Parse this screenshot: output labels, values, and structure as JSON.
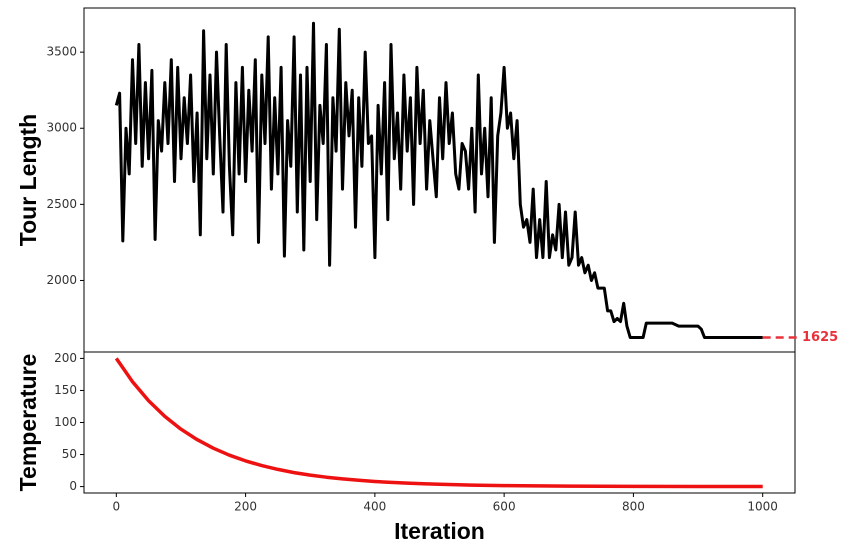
{
  "chart_data": [
    {
      "type": "line",
      "ylabel": "Tour Length",
      "color": "#000000",
      "line_width": 3,
      "xlim": [
        -50,
        1050
      ],
      "ylim": [
        1530,
        3790
      ],
      "yticks": [
        2000,
        2500,
        3000,
        3500
      ],
      "annotation": {
        "value": 1625,
        "color": "#e8323c"
      },
      "x": [
        0,
        5,
        10,
        15,
        20,
        25,
        30,
        35,
        40,
        45,
        50,
        55,
        60,
        65,
        70,
        75,
        80,
        85,
        90,
        95,
        100,
        105,
        110,
        115,
        120,
        125,
        130,
        135,
        140,
        145,
        150,
        155,
        160,
        165,
        170,
        175,
        180,
        185,
        190,
        195,
        200,
        205,
        210,
        215,
        220,
        225,
        230,
        235,
        240,
        245,
        250,
        255,
        260,
        265,
        270,
        275,
        280,
        285,
        290,
        295,
        300,
        305,
        310,
        315,
        320,
        325,
        330,
        335,
        340,
        345,
        350,
        355,
        360,
        365,
        370,
        375,
        380,
        385,
        390,
        395,
        400,
        405,
        410,
        415,
        420,
        425,
        430,
        435,
        440,
        445,
        450,
        455,
        460,
        465,
        470,
        475,
        480,
        485,
        490,
        495,
        500,
        505,
        510,
        515,
        520,
        525,
        530,
        535,
        540,
        545,
        550,
        555,
        560,
        565,
        570,
        575,
        580,
        585,
        590,
        595,
        600,
        605,
        610,
        615,
        620,
        625,
        630,
        635,
        640,
        645,
        650,
        655,
        660,
        665,
        670,
        675,
        680,
        685,
        690,
        695,
        700,
        705,
        710,
        715,
        720,
        725,
        730,
        735,
        740,
        745,
        750,
        755,
        760,
        765,
        770,
        775,
        780,
        785,
        790,
        795,
        800,
        815,
        820,
        860,
        870,
        900,
        905,
        910,
        1000
      ],
      "values": [
        3150,
        3230,
        2260,
        3000,
        2700,
        3450,
        2900,
        3550,
        2750,
        3300,
        2800,
        3380,
        2270,
        3050,
        2850,
        3300,
        2900,
        3450,
        2650,
        3400,
        2800,
        3200,
        2900,
        3350,
        2650,
        3100,
        2300,
        3640,
        2800,
        3350,
        2700,
        3500,
        2950,
        2450,
        3550,
        2750,
        2300,
        3300,
        2700,
        3400,
        2650,
        3250,
        2850,
        3450,
        2250,
        3350,
        2900,
        3600,
        2600,
        3200,
        2700,
        3400,
        2160,
        3050,
        2750,
        3600,
        2450,
        3350,
        2200,
        3400,
        2650,
        3690,
        2400,
        3150,
        2900,
        3550,
        2100,
        3200,
        2850,
        3650,
        2600,
        3300,
        2950,
        3250,
        2350,
        3200,
        2750,
        3500,
        2900,
        2950,
        2150,
        3150,
        2700,
        3300,
        2400,
        3550,
        2800,
        3100,
        2600,
        3350,
        2850,
        3200,
        2500,
        3400,
        2900,
        3250,
        2600,
        3050,
        2800,
        2550,
        3200,
        2800,
        3300,
        2900,
        3100,
        2700,
        2600,
        2900,
        2850,
        2600,
        3000,
        2450,
        3350,
        2700,
        3000,
        2550,
        3200,
        2250,
        2950,
        3100,
        3400,
        3000,
        3100,
        2800,
        3050,
        2500,
        2350,
        2400,
        2250,
        2600,
        2150,
        2400,
        2150,
        2650,
        2150,
        2300,
        2200,
        2500,
        2150,
        2450,
        2100,
        2150,
        2450,
        2100,
        2150,
        2050,
        2100,
        2000,
        2050,
        1950,
        1950,
        1950,
        1800,
        1800,
        1730,
        1750,
        1730,
        1850,
        1700,
        1625,
        1625,
        1625,
        1720,
        1720,
        1700,
        1700,
        1680,
        1625,
        1625
      ]
    },
    {
      "type": "line",
      "ylabel": "Temperature",
      "xlabel": "Iteration",
      "color": "#ee1111",
      "line_width": 3.5,
      "xlim": [
        -50,
        1050
      ],
      "ylim": [
        -10,
        210
      ],
      "yticks": [
        0,
        50,
        100,
        150,
        200
      ],
      "xticks": [
        0,
        200,
        400,
        600,
        800,
        1000
      ],
      "x": [
        0,
        25,
        50,
        75,
        100,
        125,
        150,
        175,
        200,
        225,
        250,
        275,
        300,
        325,
        350,
        375,
        400,
        425,
        450,
        475,
        500,
        550,
        600,
        650,
        700,
        800,
        900,
        1000
      ],
      "values": [
        200,
        163.6,
        133.8,
        109.5,
        89.6,
        73.3,
        59.9,
        49.0,
        40.1,
        32.8,
        26.8,
        21.9,
        18.0,
        14.7,
        12.0,
        9.8,
        8.0,
        6.6,
        5.4,
        4.4,
        3.6,
        2.4,
        1.6,
        1.1,
        0.7,
        0.3,
        0.1,
        0.1
      ]
    }
  ]
}
